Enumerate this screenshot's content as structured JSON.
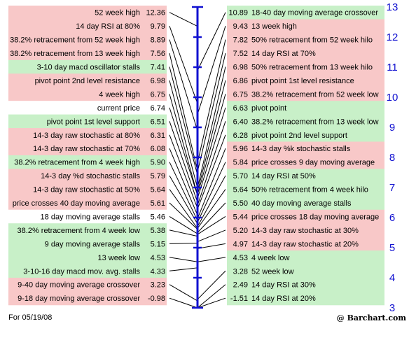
{
  "chart_data": {
    "type": "table",
    "axis": {
      "min": 3,
      "max": 13,
      "ticks": [
        3,
        4,
        5,
        6,
        7,
        8,
        9,
        10,
        11,
        12,
        13
      ]
    },
    "colors": {
      "resistance": "#f8c8c8",
      "support": "#c8f0c8",
      "neutral": "#ffffff",
      "axis": "#1010d0",
      "line": "#000000"
    },
    "left_rows": [
      {
        "label": "52 week high",
        "value": 12.36,
        "type": "resistance"
      },
      {
        "label": "14 day RSI at 80%",
        "value": 9.79,
        "type": "resistance"
      },
      {
        "label": "38.2% retracement from 52 week high",
        "value": 8.89,
        "type": "resistance"
      },
      {
        "label": "38.2% retracement from 13 week high",
        "value": 7.56,
        "type": "resistance"
      },
      {
        "label": "3-10 day macd oscillator stalls",
        "value": 7.41,
        "type": "support"
      },
      {
        "label": "pivot point 2nd level resistance",
        "value": 6.98,
        "type": "resistance"
      },
      {
        "label": "4 week high",
        "value": 6.75,
        "type": "resistance"
      },
      {
        "label": "current price",
        "value": 6.74,
        "type": "neutral"
      },
      {
        "label": "pivot point 1st level support",
        "value": 6.51,
        "type": "support"
      },
      {
        "label": "14-3 day raw stochastic at 80%",
        "value": 6.31,
        "type": "resistance"
      },
      {
        "label": "14-3 day raw stochastic at 70%",
        "value": 6.08,
        "type": "resistance"
      },
      {
        "label": "38.2% retracement from 4 week high",
        "value": 5.9,
        "type": "support"
      },
      {
        "label": "14-3 day %d stochastic stalls",
        "value": 5.79,
        "type": "resistance"
      },
      {
        "label": "14-3 day raw stochastic at 50%",
        "value": 5.64,
        "type": "resistance"
      },
      {
        "label": "price crosses 40 day moving average",
        "value": 5.61,
        "type": "resistance"
      },
      {
        "label": "18 day moving average stalls",
        "value": 5.46,
        "type": "neutral"
      },
      {
        "label": "38.2% retracement from 4 week low",
        "value": 5.38,
        "type": "support"
      },
      {
        "label": "9 day moving average stalls",
        "value": 5.15,
        "type": "support"
      },
      {
        "label": "13 week low",
        "value": 4.53,
        "type": "support"
      },
      {
        "label": "3-10-16 day macd mov. avg. stalls",
        "value": 4.33,
        "type": "support"
      },
      {
        "label": "9-40 day moving average crossover",
        "value": 3.23,
        "type": "resistance"
      },
      {
        "label": "9-18 day moving average crossover",
        "value": -0.98,
        "type": "resistance"
      }
    ],
    "right_rows": [
      {
        "label": "18-40 day moving average crossover",
        "value": 10.89,
        "type": "support"
      },
      {
        "label": "13 week high",
        "value": 9.43,
        "type": "resistance"
      },
      {
        "label": "50% retracement from 52 week hilo",
        "value": 7.82,
        "type": "resistance"
      },
      {
        "label": "14 day RSI at 70%",
        "value": 7.52,
        "type": "resistance"
      },
      {
        "label": "50% retracement from 13 week hilo",
        "value": 6.98,
        "type": "resistance"
      },
      {
        "label": "pivot point 1st level resistance",
        "value": 6.86,
        "type": "resistance"
      },
      {
        "label": "38.2% retracement from 52 week low",
        "value": 6.75,
        "type": "resistance"
      },
      {
        "label": "pivot point",
        "value": 6.63,
        "type": "support"
      },
      {
        "label": "38.2% retracement from 13 week low",
        "value": 6.4,
        "type": "support"
      },
      {
        "label": "pivot point 2nd level support",
        "value": 6.28,
        "type": "support"
      },
      {
        "label": "14-3 day %k stochastic stalls",
        "value": 5.96,
        "type": "resistance"
      },
      {
        "label": "price crosses 9 day moving average",
        "value": 5.84,
        "type": "resistance"
      },
      {
        "label": "14 day RSI at 50%",
        "value": 5.7,
        "type": "support"
      },
      {
        "label": "50% retracement from 4 week hilo",
        "value": 5.64,
        "type": "support"
      },
      {
        "label": "40 day moving average stalls",
        "value": 5.5,
        "type": "support"
      },
      {
        "label": "price crosses 18 day moving average",
        "value": 5.44,
        "type": "resistance"
      },
      {
        "label": "14-3 day raw stochastic at 30%",
        "value": 5.2,
        "type": "resistance"
      },
      {
        "label": "14-3 day raw stochastic at 20%",
        "value": 4.97,
        "type": "resistance"
      },
      {
        "label": "4 week low",
        "value": 4.53,
        "type": "support"
      },
      {
        "label": "52 week low",
        "value": 3.28,
        "type": "support"
      },
      {
        "label": "14 day RSI at 30%",
        "value": 2.49,
        "type": "support"
      },
      {
        "label": "14 day RSI at 20%",
        "value": -1.51,
        "type": "support"
      }
    ]
  },
  "footer": {
    "date": "For 05/19/08",
    "brand": "@ Barchart.com"
  }
}
